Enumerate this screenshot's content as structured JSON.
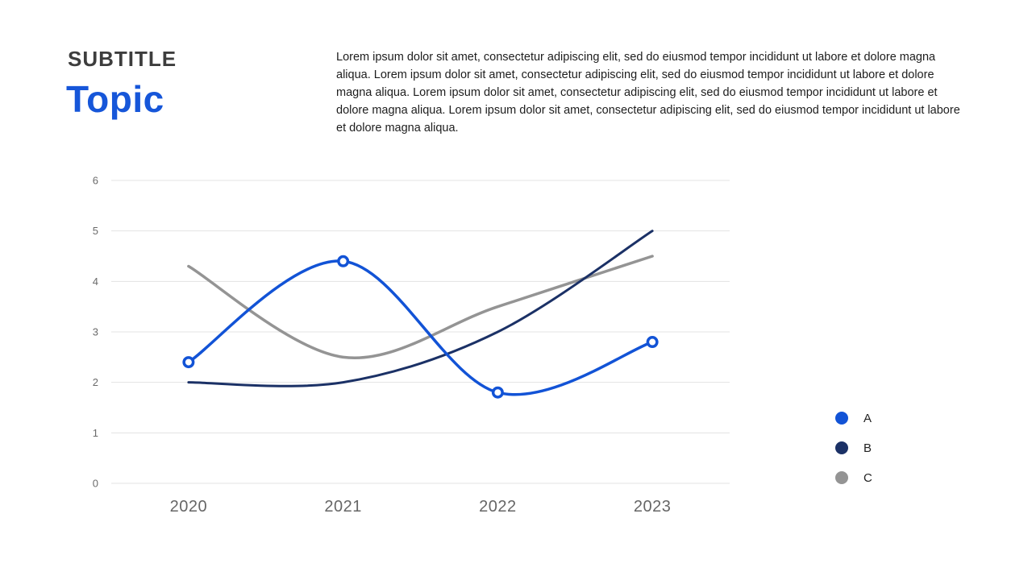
{
  "header": {
    "subtitle": "SUBTITLE",
    "title": "Topic",
    "description": "Lorem ipsum dolor sit amet, consectetur adipiscing elit, sed do eiusmod tempor incididunt ut labore et dolore magna aliqua. Lorem ipsum dolor sit amet, consectetur adipiscing elit, sed do eiusmod tempor incididunt ut labore et dolore magna aliqua. Lorem ipsum dolor sit amet, consectetur adipiscing elit, sed do eiusmod tempor incididunt ut labore et dolore magna aliqua. Lorem ipsum dolor sit amet, consectetur adipiscing elit, sed do eiusmod tempor incididunt ut labore et dolore magna aliqua."
  },
  "colors": {
    "title_blue": "#1656d9",
    "subtitle_dark": "#3d3d3d",
    "gridline": "#e3e3e3",
    "y_axis_text": "#6a6a6a",
    "x_axis_text": "#666666",
    "series_a_blue": "#1253d6",
    "series_b_navy": "#1b3166",
    "series_c_gray": "#949494"
  },
  "chart_data": {
    "type": "line",
    "title": "",
    "xlabel": "",
    "ylabel": "",
    "categories": [
      "2020",
      "2021",
      "2022",
      "2023"
    ],
    "series": [
      {
        "name": "A",
        "color": "#1253d6",
        "values": [
          2.4,
          4.4,
          1.8,
          2.8
        ],
        "markers": true,
        "line_width": 3.5
      },
      {
        "name": "B",
        "color": "#1b3166",
        "values": [
          2.0,
          2.0,
          3.0,
          5.0
        ],
        "markers": false,
        "line_width": 3
      },
      {
        "name": "C",
        "color": "#949494",
        "values": [
          4.3,
          2.5,
          3.5,
          4.5
        ],
        "markers": false,
        "line_width": 3.5
      }
    ],
    "y_ticks": [
      0,
      1,
      2,
      3,
      4,
      5,
      6
    ],
    "ylim": [
      0,
      6
    ],
    "grid": true,
    "smooth": true,
    "legend_position": "right"
  }
}
